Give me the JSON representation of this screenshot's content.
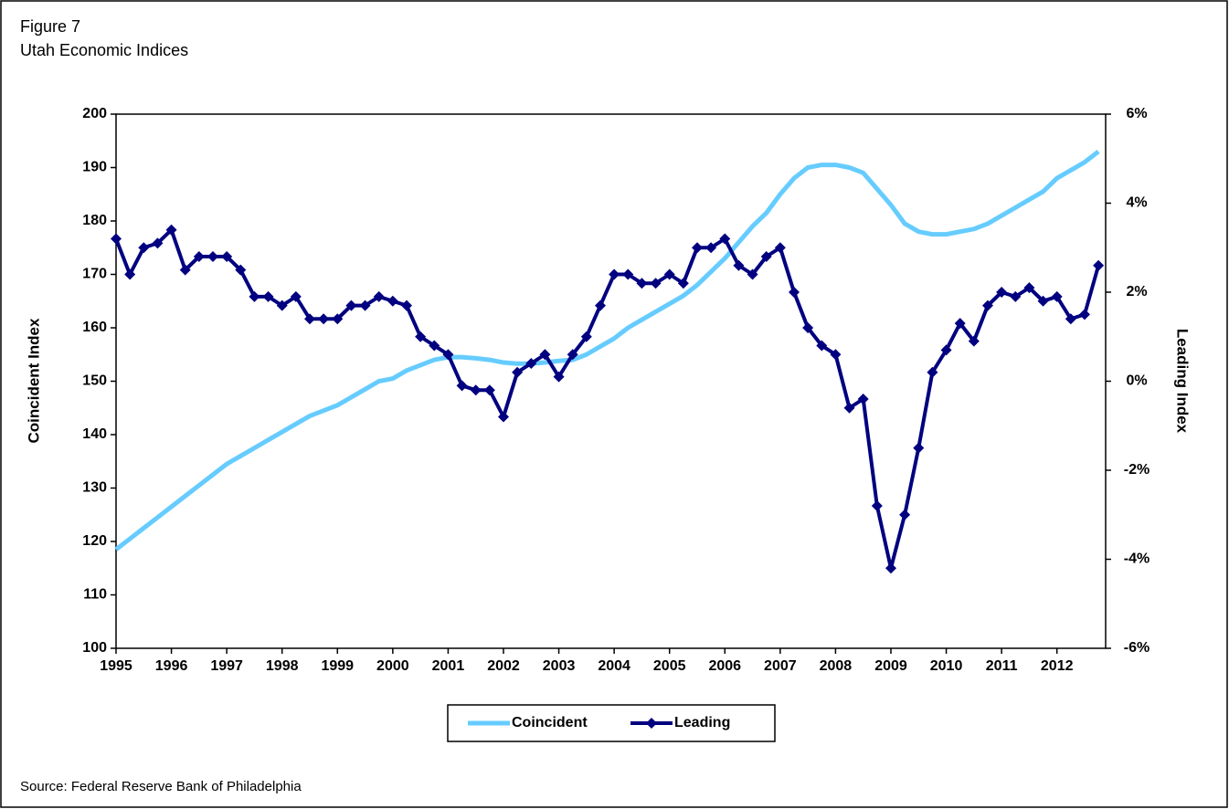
{
  "chart_data": {
    "type": "line",
    "title": "Figure 7",
    "subtitle": "Utah Economic Indices",
    "y_label": "Coincident Index",
    "y2_label": "Leading Index",
    "source": "Source: Federal Reserve Bank of Philadelphia",
    "xlim": [
      1995,
      2012.88
    ],
    "xticks": [
      1995,
      1996,
      1997,
      1998,
      1999,
      2000,
      2001,
      2002,
      2003,
      2004,
      2005,
      2006,
      2007,
      2008,
      2009,
      2010,
      2011,
      2012
    ],
    "ylim": [
      100,
      200
    ],
    "yticks": [
      100,
      110,
      120,
      130,
      140,
      150,
      160,
      170,
      180,
      190,
      200
    ],
    "y2lim": [
      -6,
      6
    ],
    "y2ticks": [
      {
        "value": -6,
        "label": "-6%"
      },
      {
        "value": -4,
        "label": "-4%"
      },
      {
        "value": -2,
        "label": "-2%"
      },
      {
        "value": 0,
        "label": "0%"
      },
      {
        "value": 2,
        "label": "2%"
      },
      {
        "value": 4,
        "label": "4%"
      },
      {
        "value": 6,
        "label": "6%"
      }
    ],
    "grid": false,
    "legend": "bottom",
    "x": [
      1995,
      1995.25,
      1995.5,
      1995.75,
      1996,
      1996.25,
      1996.5,
      1996.75,
      1997,
      1997.25,
      1997.5,
      1997.75,
      1998,
      1998.25,
      1998.5,
      1998.75,
      1999,
      1999.25,
      1999.5,
      1999.75,
      2000,
      2000.25,
      2000.5,
      2000.75,
      2001,
      2001.25,
      2001.5,
      2001.75,
      2002,
      2002.25,
      2002.5,
      2002.75,
      2003,
      2003.25,
      2003.5,
      2003.75,
      2004,
      2004.25,
      2004.5,
      2004.75,
      2005,
      2005.25,
      2005.5,
      2005.75,
      2006,
      2006.25,
      2006.5,
      2006.75,
      2007,
      2007.25,
      2007.5,
      2007.75,
      2008,
      2008.25,
      2008.5,
      2008.75,
      2009,
      2009.25,
      2009.5,
      2009.75,
      2010,
      2010.25,
      2010.5,
      2010.75,
      2011,
      2011.25,
      2011.5,
      2011.75,
      2012,
      2012.25,
      2012.5,
      2012.75
    ],
    "series": [
      {
        "name": "Coincident",
        "color": "#66ccff",
        "axis": "y",
        "values": [
          118.5,
          120.5,
          122.5,
          124.5,
          126.5,
          128.5,
          130.5,
          132.5,
          134.5,
          136,
          137.5,
          139,
          140.5,
          142,
          143.5,
          144.5,
          145.5,
          147,
          148.5,
          150,
          150.5,
          152,
          153,
          154,
          154.5,
          154.5,
          154.3,
          154,
          153.5,
          153.3,
          153.3,
          153.5,
          153.8,
          154,
          155,
          156.5,
          158,
          160,
          161.5,
          163,
          164.5,
          166,
          168,
          170.5,
          173,
          176,
          179,
          181.5,
          185,
          188,
          190,
          190.5,
          190.5,
          190,
          189,
          186,
          183,
          179.5,
          178,
          177.5,
          177.5,
          178,
          178.5,
          179.5,
          181,
          182.5,
          184,
          185.5,
          188,
          189.5,
          191,
          193
        ]
      },
      {
        "name": "Leading",
        "color": "#000080",
        "axis": "y2",
        "values": [
          3.2,
          2.4,
          3.0,
          3.1,
          3.4,
          2.5,
          2.8,
          2.8,
          2.8,
          2.5,
          1.9,
          1.9,
          1.7,
          1.9,
          1.4,
          1.4,
          1.4,
          1.7,
          1.7,
          1.9,
          1.8,
          1.7,
          1.0,
          0.8,
          0.6,
          -0.1,
          -0.2,
          -0.2,
          -0.8,
          0.2,
          0.4,
          0.6,
          0.1,
          0.6,
          1.0,
          1.7,
          2.4,
          2.4,
          2.2,
          2.2,
          2.4,
          2.2,
          3.0,
          3.0,
          3.2,
          2.6,
          2.4,
          2.8,
          3.0,
          2.0,
          1.2,
          0.8,
          0.6,
          -0.6,
          -0.4,
          -2.8,
          -4.2,
          -3.0,
          -1.5,
          0.2,
          0.7,
          1.3,
          0.9,
          1.7,
          2.0,
          1.9,
          2.1,
          1.8,
          1.9,
          1.4,
          1.5,
          2.6
        ]
      }
    ]
  }
}
